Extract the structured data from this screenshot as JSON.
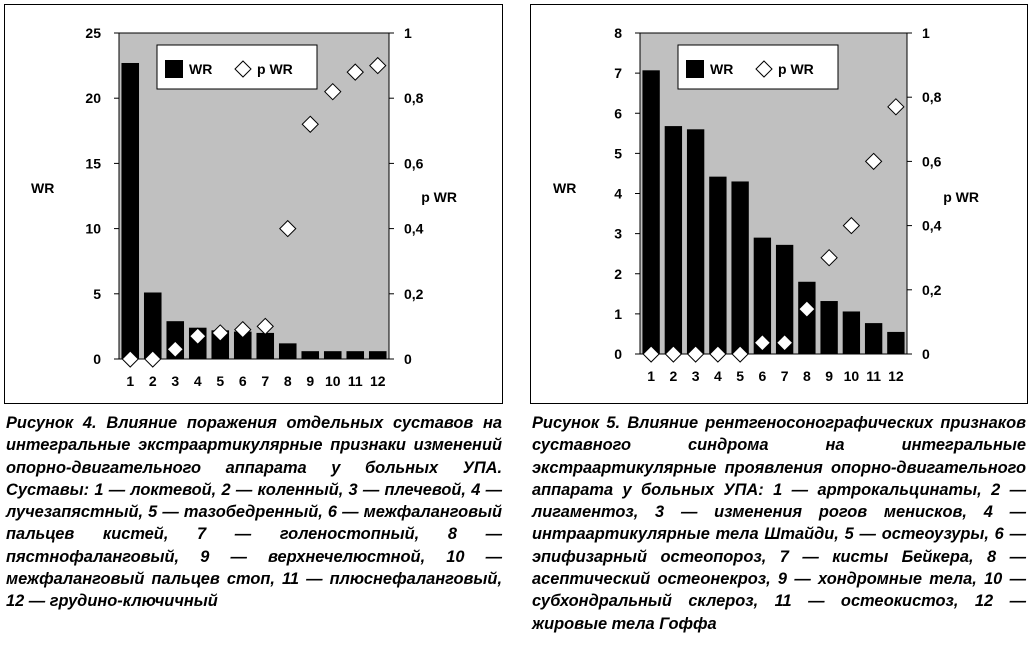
{
  "chart_data": [
    {
      "type": "bar",
      "categories": [
        "1",
        "2",
        "3",
        "4",
        "5",
        "6",
        "7",
        "8",
        "9",
        "10",
        "11",
        "12"
      ],
      "series": [
        {
          "name": "WR",
          "kind": "bar",
          "axis": "left",
          "values": [
            22.7,
            5.1,
            2.9,
            2.4,
            2.2,
            2.1,
            2.0,
            1.2,
            0.6,
            0.6,
            0.6,
            0.6
          ]
        },
        {
          "name": "p WR",
          "kind": "marker",
          "axis": "right",
          "values": [
            0.0,
            0.0,
            0.03,
            0.07,
            0.08,
            0.09,
            0.1,
            0.4,
            0.72,
            0.82,
            0.88,
            0.9
          ]
        }
      ],
      "ylabel": "WR",
      "y2label": "p WR",
      "ylim": [
        0,
        25
      ],
      "yticks": [
        "0",
        "5",
        "10",
        "15",
        "20",
        "25"
      ],
      "y2lim": [
        0,
        1
      ],
      "y2ticks": [
        "0",
        "0,2",
        "0,4",
        "0,6",
        "0,8",
        "1"
      ],
      "legend_position": "top",
      "plot_background": "#c0c0c0",
      "bar_color": "#000000",
      "marker_shape": "diamond"
    },
    {
      "type": "bar",
      "categories": [
        "1",
        "2",
        "3",
        "4",
        "5",
        "6",
        "7",
        "8",
        "9",
        "10",
        "11",
        "12"
      ],
      "series": [
        {
          "name": "WR",
          "kind": "bar",
          "axis": "left",
          "values": [
            7.07,
            5.68,
            5.6,
            4.42,
            4.3,
            2.9,
            2.72,
            1.8,
            1.32,
            1.06,
            0.77,
            0.55
          ]
        },
        {
          "name": "p WR",
          "kind": "marker",
          "axis": "right",
          "values": [
            0.0,
            0.0,
            0.0,
            0.0,
            0.0,
            0.035,
            0.035,
            0.14,
            0.3,
            0.4,
            0.6,
            0.77
          ]
        }
      ],
      "ylabel": "WR",
      "y2label": "p WR",
      "ylim": [
        0,
        8
      ],
      "yticks": [
        "0",
        "1",
        "2",
        "3",
        "4",
        "5",
        "6",
        "7",
        "8"
      ],
      "y2lim": [
        0,
        1
      ],
      "y2ticks": [
        "0",
        "0,2",
        "0,4",
        "0,6",
        "0,8",
        "1"
      ],
      "legend_position": "top",
      "plot_background": "#c0c0c0",
      "bar_color": "#000000",
      "marker_shape": "diamond"
    }
  ],
  "captions": [
    {
      "head": "Рисунок 4.",
      "body": "Влияние поражения отдельных суставов на интегральные экстраартикулярные признаки изменений опорно-двигательного аппарата у больных УПА. Суставы: 1 — локтевой, 2 — коленный, 3 — плечевой, 4 — лучезапястный, 5 — тазобедренный, 6 — межфаланговый пальцев кистей, 7 — голеностопный, 8 — пястнофаланговый, 9 — верхнечелюстной, 10 — межфаланговый пальцев стоп, 11 — плюснефаланговый, 12 — грудино-ключичный"
    },
    {
      "head": "Рисунок 5.",
      "body": "Влияние рентгеносонографических признаков суставного синдрома на интегральные экстраартикулярные проявления опорно-двигательного аппарата у больных УПА: 1 — артрокальцинаты, 2 — лигаментоз, 3 — изменения рогов менисков, 4 — интраартикулярные тела Штайди, 5 — остеоузуры, 6 — эпифизарный остеопороз, 7 — кисты Бейкера, 8 — асептический остеонекроз, 9 — хондромные тела, 10 — субхондральный склероз, 11 — остеокистоз, 12 — жировые тела Гоффа"
    }
  ]
}
